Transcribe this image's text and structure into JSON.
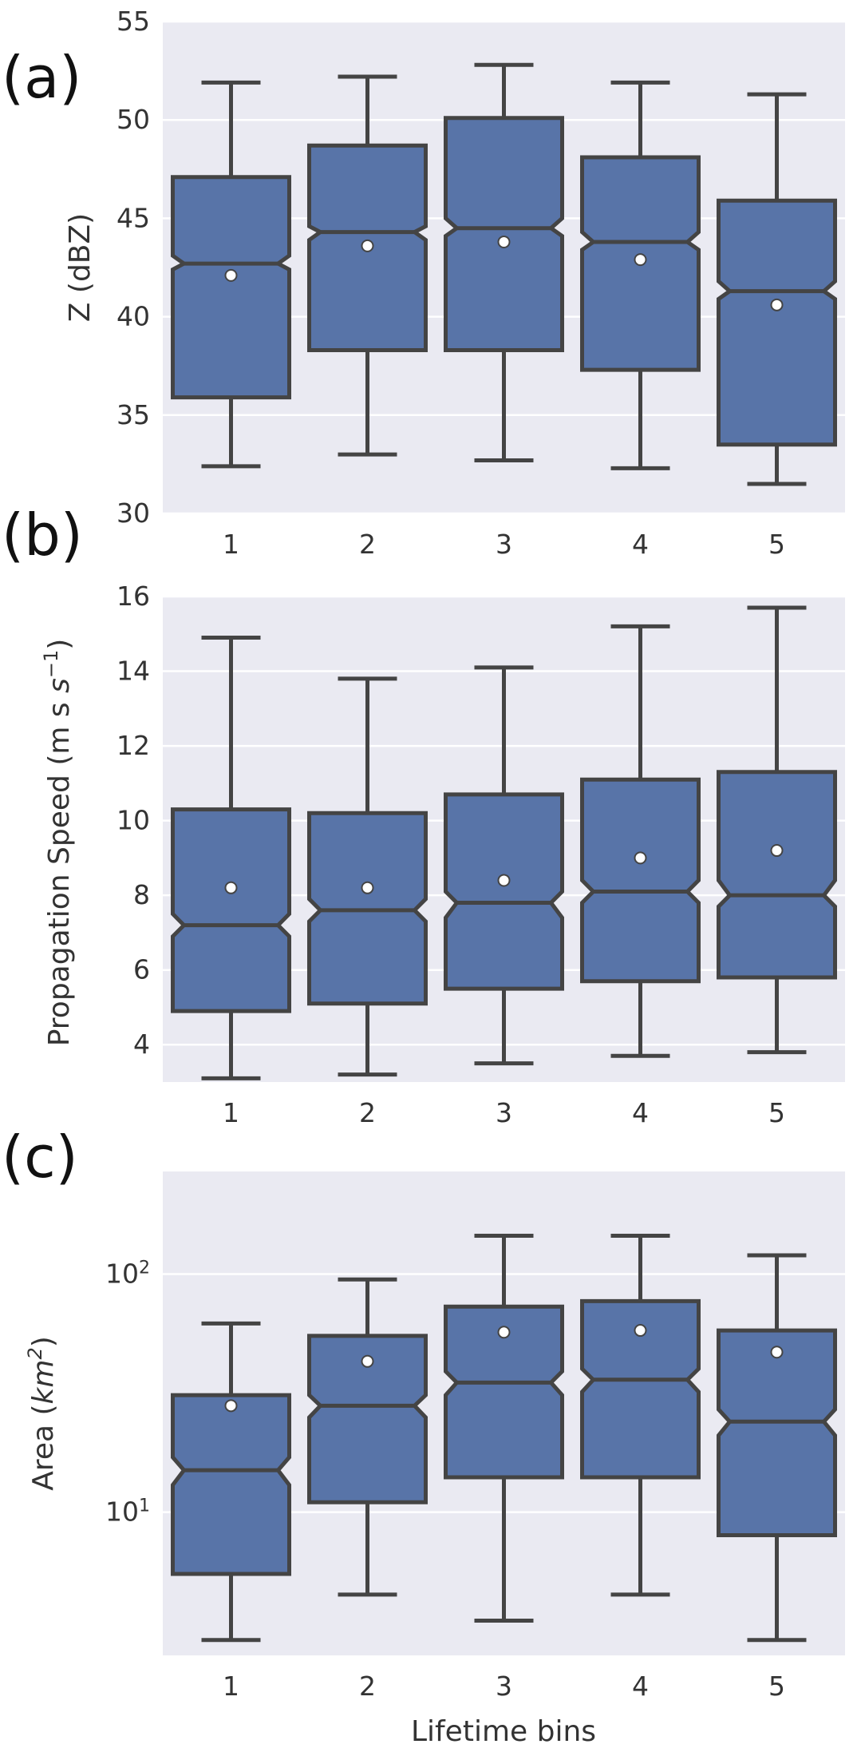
{
  "chart_data": [
    {
      "type": "box",
      "panel_label": "(a)",
      "ylabel": "Z (dBZ)",
      "xlabel": "",
      "ylim": [
        30,
        55
      ],
      "yscale": "linear",
      "yticks": [
        "30",
        "35",
        "40",
        "45",
        "50",
        "55"
      ],
      "categories": [
        "1",
        "2",
        "3",
        "4",
        "5"
      ],
      "notched": true,
      "grid": true,
      "box_color": "#5874a8",
      "edge_color": "#444444",
      "boxes": [
        {
          "whislo": 32.4,
          "q1": 35.9,
          "med": 42.7,
          "q3": 47.1,
          "whishi": 51.9,
          "mean": 42.1,
          "notch_lo": 42.4,
          "notch_hi": 43.1
        },
        {
          "whislo": 33.0,
          "q1": 38.3,
          "med": 44.3,
          "q3": 48.7,
          "whishi": 52.2,
          "mean": 43.6,
          "notch_lo": 43.9,
          "notch_hi": 44.6
        },
        {
          "whislo": 32.7,
          "q1": 38.3,
          "med": 44.5,
          "q3": 50.1,
          "whishi": 52.8,
          "mean": 43.8,
          "notch_lo": 44.1,
          "notch_hi": 45.0
        },
        {
          "whislo": 32.3,
          "q1": 37.3,
          "med": 43.8,
          "q3": 48.1,
          "whishi": 51.9,
          "mean": 42.9,
          "notch_lo": 43.4,
          "notch_hi": 44.3
        },
        {
          "whislo": 31.5,
          "q1": 33.5,
          "med": 41.3,
          "q3": 45.9,
          "whishi": 51.3,
          "mean": 40.6,
          "notch_lo": 40.9,
          "notch_hi": 41.8
        }
      ]
    },
    {
      "type": "box",
      "panel_label": "(b)",
      "ylabel": "Propagation Speed (m s",
      "ylabel_sup": "−1",
      "ylabel_end": ")",
      "xlabel": "",
      "ylim": [
        3,
        16
      ],
      "yscale": "linear",
      "yticks": [
        "4",
        "6",
        "8",
        "10",
        "12",
        "14",
        "16"
      ],
      "categories": [
        "1",
        "2",
        "3",
        "4",
        "5"
      ],
      "notched": true,
      "grid": true,
      "box_color": "#5874a8",
      "edge_color": "#444444",
      "boxes": [
        {
          "whislo": 3.1,
          "q1": 4.9,
          "med": 7.2,
          "q3": 10.3,
          "whishi": 14.9,
          "mean": 8.2,
          "notch_lo": 6.9,
          "notch_hi": 7.5
        },
        {
          "whislo": 3.2,
          "q1": 5.1,
          "med": 7.6,
          "q3": 10.2,
          "whishi": 13.8,
          "mean": 8.2,
          "notch_lo": 7.3,
          "notch_hi": 7.9
        },
        {
          "whislo": 3.5,
          "q1": 5.5,
          "med": 7.8,
          "q3": 10.7,
          "whishi": 14.1,
          "mean": 8.4,
          "notch_lo": 7.4,
          "notch_hi": 8.1
        },
        {
          "whislo": 3.7,
          "q1": 5.7,
          "med": 8.1,
          "q3": 11.1,
          "whishi": 15.2,
          "mean": 9.0,
          "notch_lo": 7.8,
          "notch_hi": 8.4
        },
        {
          "whislo": 3.8,
          "q1": 5.8,
          "med": 8.0,
          "q3": 11.3,
          "whishi": 15.7,
          "mean": 9.2,
          "notch_lo": 7.7,
          "notch_hi": 8.4
        }
      ]
    },
    {
      "type": "box",
      "panel_label": "(c)",
      "ylabel": "Area (",
      "ylabel_italic": "km",
      "ylabel_sup": "2",
      "ylabel_end": ")",
      "xlabel": "Lifetime bins",
      "ylim": [
        2.5,
        270
      ],
      "yscale": "log",
      "yticks": [
        {
          "value": 10,
          "base": "10",
          "exp": "1"
        },
        {
          "value": 100,
          "base": "10",
          "exp": "2"
        }
      ],
      "categories": [
        "1",
        "2",
        "3",
        "4",
        "5"
      ],
      "notched": true,
      "grid": true,
      "box_color": "#5874a8",
      "edge_color": "#444444",
      "boxes": [
        {
          "whislo": 2.9,
          "q1": 5.5,
          "med": 15,
          "q3": 31,
          "whishi": 62,
          "mean": 28,
          "notch_lo": 13,
          "notch_hi": 17
        },
        {
          "whislo": 4.5,
          "q1": 11,
          "med": 28,
          "q3": 55,
          "whishi": 95,
          "mean": 43,
          "notch_lo": 25,
          "notch_hi": 31
        },
        {
          "whislo": 3.5,
          "q1": 14,
          "med": 35,
          "q3": 73,
          "whishi": 145,
          "mean": 57,
          "notch_lo": 31,
          "notch_hi": 39
        },
        {
          "whislo": 4.5,
          "q1": 14,
          "med": 36,
          "q3": 77,
          "whishi": 145,
          "mean": 58,
          "notch_lo": 32,
          "notch_hi": 40
        },
        {
          "whislo": 2.9,
          "q1": 8,
          "med": 24,
          "q3": 58,
          "whishi": 120,
          "mean": 47,
          "notch_lo": 21,
          "notch_hi": 27
        }
      ]
    }
  ]
}
